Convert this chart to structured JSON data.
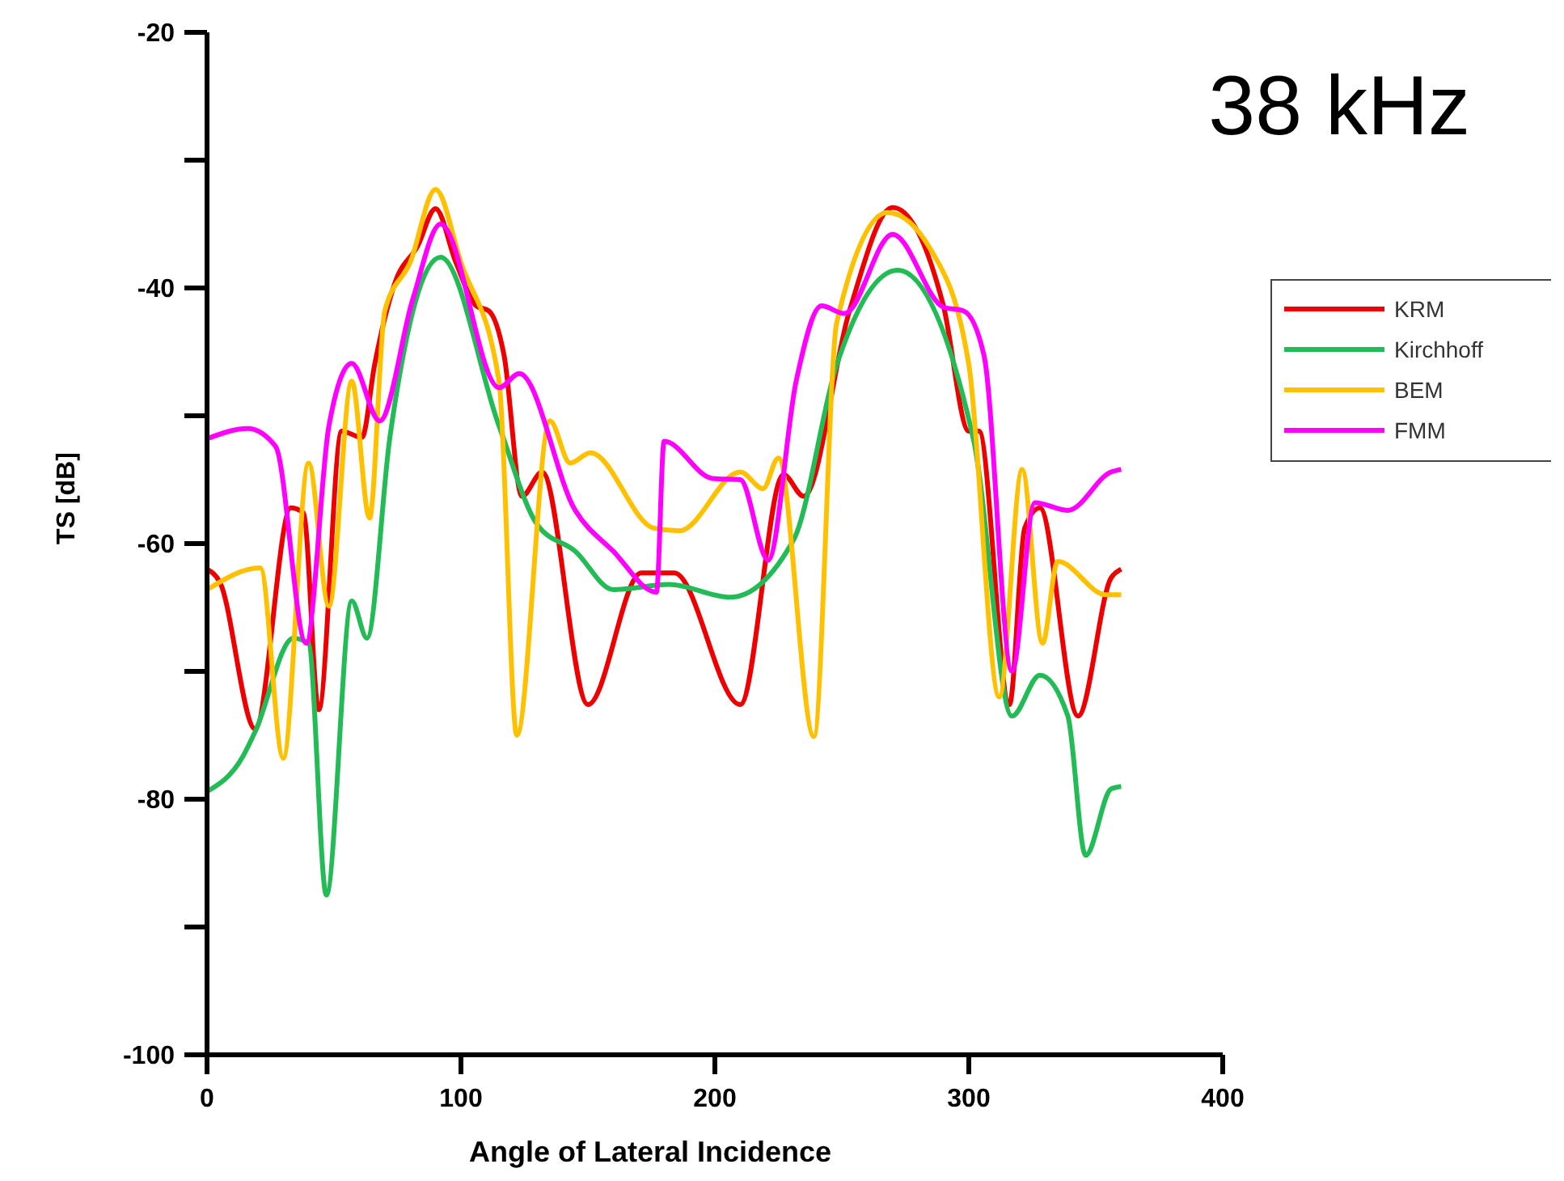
{
  "chart_data": {
    "type": "line",
    "xlabel": "Angle of Lateral Incidence",
    "ylabel": "TS [dB]",
    "annotations": [
      "38 kHz"
    ],
    "xlim": [
      0,
      400
    ],
    "xticks": [
      0,
      100,
      200,
      300,
      400
    ],
    "ylim": [
      -100,
      -20
    ],
    "yticks": [
      -100,
      {
        "value": -90,
        "label": null
      },
      -80,
      {
        "value": -70,
        "label": null
      },
      -60,
      {
        "value": -50,
        "label": null
      },
      -40,
      {
        "value": -30,
        "label": null
      },
      -20
    ],
    "legend": "right",
    "grid": false,
    "series": [
      {
        "name": "KRM",
        "color": "#ee0000",
        "x": [
          0,
          5,
          19,
          33,
          38,
          44,
          53,
          61,
          66,
          74,
          83,
          90,
          98,
          106,
          111,
          117,
          124,
          132,
          150,
          171,
          184,
          210,
          227,
          235,
          253,
          270,
          290,
          300,
          304,
          316,
          322,
          328,
          343,
          356,
          360
        ],
        "values": [
          -62,
          -63,
          -74.5,
          -57.2,
          -57.6,
          -73,
          -51.2,
          -51.7,
          -46,
          -39.6,
          -36.7,
          -33.8,
          -38,
          -41.4,
          -41.8,
          -45.3,
          -56.3,
          -54.4,
          -72.6,
          -62.3,
          -62.3,
          -72.6,
          -54.6,
          -56.3,
          -41.8,
          -33.7,
          -41.4,
          -51.2,
          -51.2,
          -72.6,
          -58.8,
          -57.2,
          -73.5,
          -62.7,
          -62
        ]
      },
      {
        "name": "Kirchhoff",
        "color": "#22bb55",
        "x": [
          0,
          14,
          19,
          34,
          40,
          47,
          57,
          63,
          72,
          92,
          115,
          130,
          145,
          160,
          182,
          206,
          231,
          248,
          272,
          302,
          317,
          328,
          339,
          346,
          356,
          360
        ],
        "values": [
          -79.4,
          -76.7,
          -74.7,
          -67.4,
          -67.8,
          -87.5,
          -64.5,
          -67.4,
          -51.7,
          -37.6,
          -50.8,
          -58.5,
          -60.6,
          -63.6,
          -63.2,
          -64.2,
          -59.7,
          -46,
          -38.6,
          -52,
          -73.5,
          -70.3,
          -73.5,
          -84.4,
          -79.2,
          -79
        ]
      },
      {
        "name": "BEM",
        "color": "#ffc000",
        "x": [
          0,
          21,
          30,
          40,
          48,
          57,
          64,
          70,
          80,
          90,
          100,
          115,
          122,
          135,
          143,
          151,
          176,
          186,
          210,
          219,
          225,
          239,
          248,
          268,
          285,
          300,
          312,
          321,
          329,
          335,
          354,
          360
        ],
        "values": [
          -63.6,
          -61.9,
          -76.8,
          -53.7,
          -64.9,
          -47.3,
          -58,
          -41.8,
          -38,
          -32.3,
          -38,
          -47.3,
          -75,
          -50.4,
          -53.7,
          -52.9,
          -58.8,
          -59,
          -54.4,
          -55.7,
          -53.3,
          -75.1,
          -42.7,
          -34.1,
          -37,
          -46,
          -72,
          -54.2,
          -67.8,
          -61.4,
          -64,
          -64
        ]
      },
      {
        "name": "FMM",
        "color": "#ff00ff",
        "x": [
          0,
          16,
          27,
          39,
          48,
          57,
          68,
          81,
          92,
          115,
          123,
          145,
          160,
          177,
          180,
          199,
          210,
          221,
          232,
          242,
          251,
          270,
          290,
          298,
          306,
          317,
          326,
          339,
          356,
          360
        ],
        "values": [
          -51.8,
          -51,
          -52.4,
          -67.8,
          -50.8,
          -45.9,
          -50.4,
          -40.9,
          -35,
          -47.8,
          -46.7,
          -57.4,
          -60.6,
          -63.8,
          -52,
          -54.9,
          -55,
          -61.3,
          -47.3,
          -41.4,
          -42,
          -35.8,
          -41.5,
          -41.8,
          -45.3,
          -70,
          -56.8,
          -57.4,
          -54.4,
          -54.2
        ]
      }
    ]
  }
}
